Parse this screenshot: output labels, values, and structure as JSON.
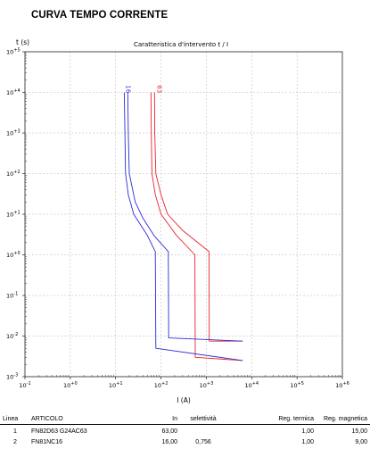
{
  "document": {
    "title": "CURVA TEMPO CORRENTE"
  },
  "chart_data": {
    "type": "line",
    "title": "Caratteristica d'intervento t / I",
    "xlabel": "I (A)",
    "ylabel": "t (s)",
    "x_scale": "log",
    "y_scale": "log",
    "xlim": [
      0.1,
      1000000
    ],
    "ylim": [
      0.001,
      100000
    ],
    "grid": true,
    "x_ticks": [
      {
        "value": 0.1,
        "base": "10",
        "exp": "-1"
      },
      {
        "value": 1,
        "base": "10",
        "exp": "+0"
      },
      {
        "value": 10,
        "base": "10",
        "exp": "+1"
      },
      {
        "value": 100,
        "base": "10",
        "exp": "+2"
      },
      {
        "value": 1000,
        "base": "10",
        "exp": "+3"
      },
      {
        "value": 10000,
        "base": "10",
        "exp": "+4"
      },
      {
        "value": 100000,
        "base": "10",
        "exp": "+5"
      },
      {
        "value": 1000000,
        "base": "10",
        "exp": "+6"
      }
    ],
    "y_ticks": [
      {
        "value": 0.001,
        "base": "10",
        "exp": "-3"
      },
      {
        "value": 0.01,
        "base": "10",
        "exp": "-2"
      },
      {
        "value": 0.1,
        "base": "10",
        "exp": "-1"
      },
      {
        "value": 1,
        "base": "10",
        "exp": "+0"
      },
      {
        "value": 10,
        "base": "10",
        "exp": "+1"
      },
      {
        "value": 100,
        "base": "10",
        "exp": "+2"
      },
      {
        "value": 1000,
        "base": "10",
        "exp": "+3"
      },
      {
        "value": 10000,
        "base": "10",
        "exp": "+4"
      },
      {
        "value": 100000,
        "base": "10",
        "exp": "+5"
      }
    ],
    "series": [
      {
        "name": "63",
        "color": "#e8232a",
        "label_at": {
          "x": 83,
          "y": 12000
        },
        "upper": [
          {
            "x": 72,
            "y": 10000
          },
          {
            "x": 73,
            "y": 1000
          },
          {
            "x": 77,
            "y": 100
          },
          {
            "x": 100,
            "y": 30
          },
          {
            "x": 140,
            "y": 10
          },
          {
            "x": 300,
            "y": 4
          },
          {
            "x": 1150,
            "y": 1.2
          },
          {
            "x": 1160,
            "y": 0.0075
          },
          {
            "x": 6300,
            "y": 0.0075
          }
        ],
        "lower": [
          {
            "x": 60,
            "y": 10000
          },
          {
            "x": 61,
            "y": 1000
          },
          {
            "x": 63,
            "y": 100
          },
          {
            "x": 75,
            "y": 30
          },
          {
            "x": 100,
            "y": 10
          },
          {
            "x": 220,
            "y": 3
          },
          {
            "x": 560,
            "y": 1
          },
          {
            "x": 570,
            "y": 0.003
          },
          {
            "x": 6300,
            "y": 0.0025
          }
        ]
      },
      {
        "name": "16",
        "color": "#2b2bd8",
        "label_at": {
          "x": 17,
          "y": 12000
        },
        "upper": [
          {
            "x": 18.5,
            "y": 10000
          },
          {
            "x": 19,
            "y": 1000
          },
          {
            "x": 20,
            "y": 100
          },
          {
            "x": 27,
            "y": 20
          },
          {
            "x": 40,
            "y": 8
          },
          {
            "x": 70,
            "y": 3
          },
          {
            "x": 145,
            "y": 1.2
          },
          {
            "x": 148,
            "y": 0.009
          },
          {
            "x": 6300,
            "y": 0.0075
          }
        ],
        "lower": [
          {
            "x": 15.5,
            "y": 10000
          },
          {
            "x": 16,
            "y": 1000
          },
          {
            "x": 16.5,
            "y": 100
          },
          {
            "x": 19,
            "y": 30
          },
          {
            "x": 25,
            "y": 10
          },
          {
            "x": 50,
            "y": 3
          },
          {
            "x": 75,
            "y": 1.2
          },
          {
            "x": 77,
            "y": 0.005
          },
          {
            "x": 6300,
            "y": 0.0025
          }
        ]
      }
    ]
  },
  "legend_table": {
    "headers": {
      "linea": "Linea",
      "articolo": "ARTICOLO",
      "in": "In",
      "selettivita": "selettività",
      "reg_termica": "Reg. termica",
      "reg_magnetica": "Reg. magnetica"
    },
    "rows": [
      {
        "linea": "1",
        "articolo": "FN82D63  G24AC63",
        "in": "63,00",
        "selettivita": "",
        "reg_termica": "1,00",
        "reg_magnetica": "15,00"
      },
      {
        "linea": "2",
        "articolo": "FN81NC16",
        "in": "16,00",
        "selettivita": "0,756",
        "reg_termica": "1,00",
        "reg_magnetica": "9,00"
      }
    ]
  }
}
